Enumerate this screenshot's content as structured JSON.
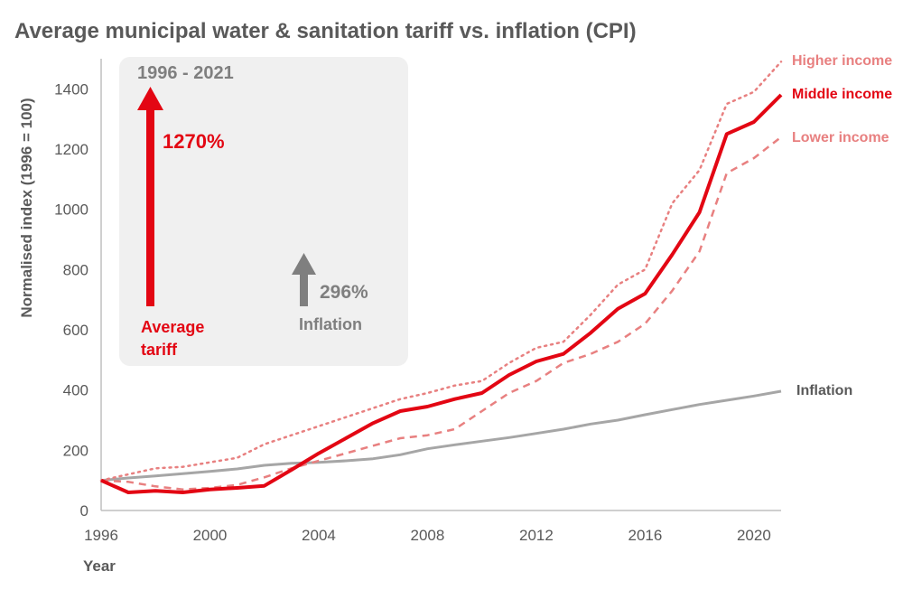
{
  "chart_data": {
    "type": "line",
    "title": "Average municipal water & sanitation tariff vs. inflation (CPI)",
    "xlabel": "Year",
    "ylabel": "Normalised index (1996 = 100)",
    "xlim": [
      1996,
      2021
    ],
    "ylim": [
      0,
      1500
    ],
    "x_ticks": [
      1996,
      2000,
      2004,
      2008,
      2012,
      2016,
      2020
    ],
    "y_ticks": [
      0,
      200,
      400,
      600,
      800,
      1000,
      1200,
      1400
    ],
    "grid": false,
    "legend": "inline labels at right end of lines",
    "x": [
      1996,
      1997,
      1998,
      1999,
      2000,
      2001,
      2002,
      2003,
      2004,
      2005,
      2006,
      2007,
      2008,
      2009,
      2010,
      2011,
      2012,
      2013,
      2014,
      2015,
      2016,
      2017,
      2018,
      2019,
      2020,
      2021
    ],
    "series": [
      {
        "name": "Higher income",
        "color": "#e88080",
        "style": "dotted",
        "values": [
          100,
          120,
          140,
          145,
          160,
          175,
          220,
          250,
          280,
          310,
          340,
          370,
          390,
          415,
          430,
          490,
          540,
          560,
          650,
          750,
          800,
          1020,
          1130,
          1350,
          1390,
          1490
        ]
      },
      {
        "name": "Middle income",
        "color": "#e30613",
        "style": "solid",
        "values": [
          100,
          60,
          65,
          60,
          70,
          75,
          82,
          135,
          190,
          240,
          290,
          330,
          345,
          370,
          390,
          450,
          495,
          520,
          590,
          670,
          720,
          850,
          990,
          1250,
          1290,
          1380
        ]
      },
      {
        "name": "Lower income",
        "color": "#e88080",
        "style": "dashed",
        "values": [
          100,
          95,
          80,
          70,
          75,
          85,
          110,
          140,
          165,
          190,
          215,
          240,
          250,
          270,
          330,
          390,
          430,
          490,
          520,
          560,
          620,
          730,
          860,
          1120,
          1170,
          1240
        ]
      },
      {
        "name": "Inflation",
        "color": "#a6a6a6",
        "style": "solid",
        "values": [
          100,
          108,
          115,
          122,
          130,
          138,
          150,
          157,
          160,
          165,
          172,
          185,
          205,
          218,
          230,
          242,
          256,
          270,
          287,
          300,
          318,
          335,
          352,
          366,
          380,
          396
        ]
      }
    ]
  },
  "inset": {
    "period": "1996 - 2021",
    "tariff_pct": "1270%",
    "tariff_label_line1": "Average",
    "tariff_label_line2": "tariff",
    "tariff_color": "#e30613",
    "inflation_pct": "296%",
    "inflation_label": "Inflation",
    "inflation_color": "#7f7f7f",
    "box_color": "#f0f0f0"
  }
}
